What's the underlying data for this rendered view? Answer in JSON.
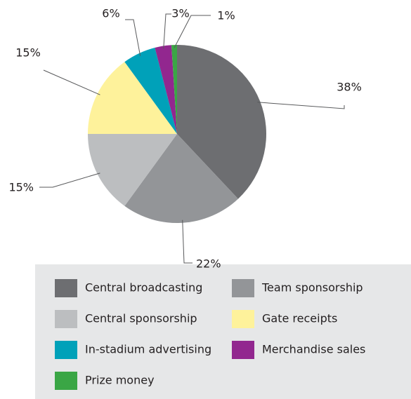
{
  "chart_data": {
    "type": "pie",
    "categories": [
      "Central broadcasting",
      "Team sponsorship",
      "Central sponsorship",
      "Gate receipts",
      "In-stadium advertising",
      "Merchandise sales",
      "Prize money"
    ],
    "values": [
      38,
      22,
      15,
      15,
      6,
      3,
      1
    ],
    "value_labels": [
      "38%",
      "22%",
      "15%",
      "15%",
      "6%",
      "3%",
      "1%"
    ],
    "colors": [
      "#6d6e71",
      "#939598",
      "#bcbec0",
      "#fef29b",
      "#00a1b9",
      "#92278f",
      "#3aa645"
    ],
    "legend": "bottom"
  }
}
